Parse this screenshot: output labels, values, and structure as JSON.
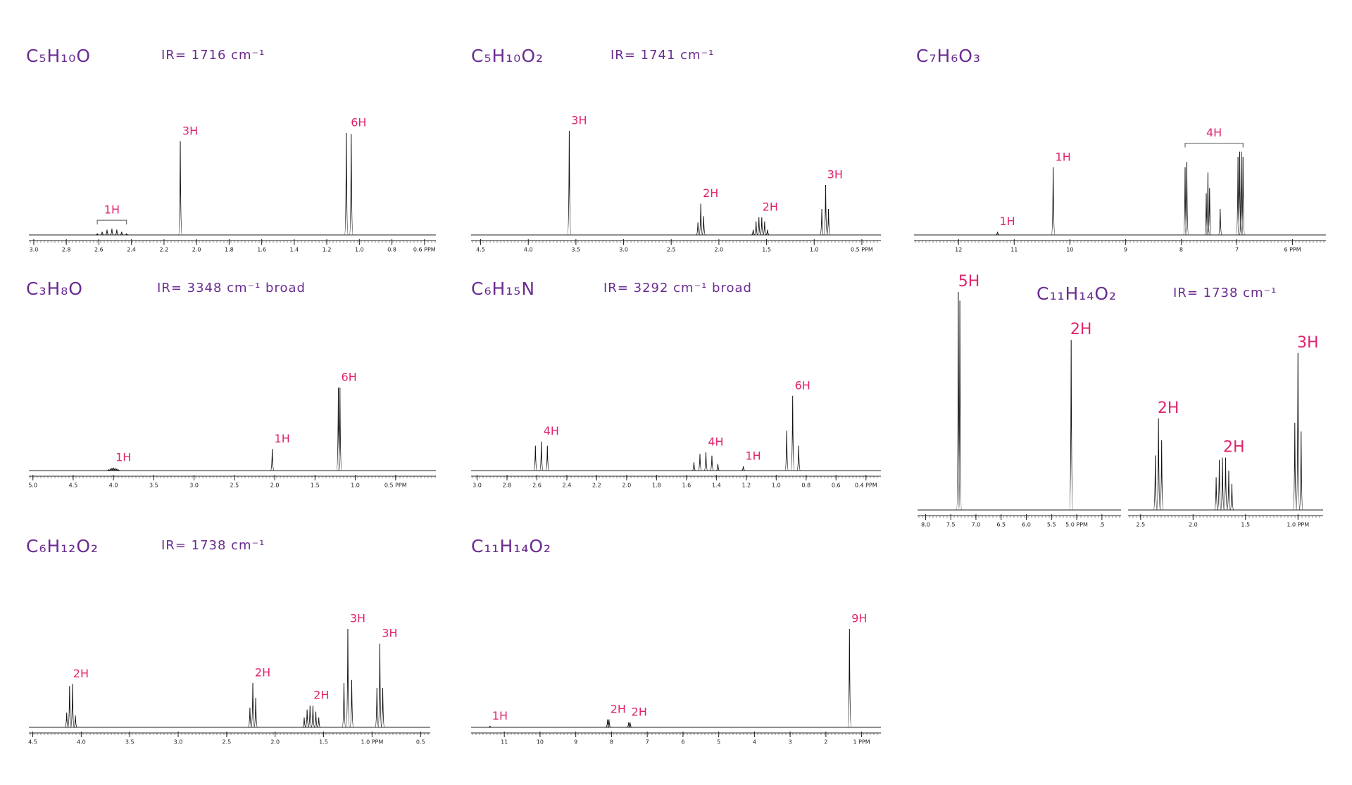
{
  "chart_data": [
    {
      "type": "nmr",
      "title": "C₅H₁₀O",
      "subtitle": "IR= 1716 cm⁻¹",
      "panels": [
        {
          "xlim": [
            3.03,
            0.53
          ],
          "ylim": [
            0,
            100
          ],
          "xticks": [
            {
              "value": 3,
              "label": "3.0"
            },
            2.8,
            2.6,
            2.4,
            2.2,
            {
              "value": 2,
              "label": "2.0"
            },
            1.8,
            1.6,
            1.4,
            1.2,
            {
              "value": 1,
              "label": "1.0"
            },
            0.8,
            {
              "value": 0.6,
              "label": "0.6 PPM"
            }
          ],
          "peaks": [
            {
              "label": "1H",
              "x": [
                2.61,
                2.58,
                2.55,
                2.52,
                2.49,
                2.46,
                2.43
              ],
              "values": [
                1,
                3,
                5,
                6,
                5,
                3,
                1
              ]
            },
            {
              "label": "3H",
              "x": [
                2.1
              ],
              "values": [
                90
              ]
            },
            {
              "label": "6H",
              "x": [
                1.08,
                1.05
              ],
              "values": [
                98,
                97
              ]
            }
          ]
        }
      ]
    },
    {
      "type": "nmr",
      "title": "C₅H₁₀O₂",
      "subtitle": "IR= 1741 cm⁻¹",
      "panels": [
        {
          "xlim": [
            4.6,
            0.3
          ],
          "ylim": [
            0,
            100
          ],
          "xticks": [
            4.5,
            {
              "value": 4,
              "label": "4.0"
            },
            3.5,
            {
              "value": 3,
              "label": "3.0"
            },
            2.5,
            {
              "value": 2,
              "label": "2.0"
            },
            1.5,
            {
              "value": 1,
              "label": "1.0"
            },
            {
              "value": 0.5,
              "label": "0.5 PPM"
            }
          ],
          "peaks": [
            {
              "label": "3H",
              "x": [
                3.57
              ],
              "values": [
                100
              ]
            },
            {
              "label": "2H",
              "x": [
                2.22,
                2.19,
                2.16
              ],
              "values": [
                12,
                30,
                18
              ]
            },
            {
              "label": "2H",
              "x": [
                1.64,
                1.61,
                1.58,
                1.55,
                1.52,
                1.49
              ],
              "values": [
                5,
                13,
                17,
                17,
                13,
                5
              ]
            },
            {
              "label": "3H",
              "x": [
                0.92,
                0.88,
                0.85
              ],
              "values": [
                25,
                48,
                25
              ]
            }
          ]
        }
      ]
    },
    {
      "type": "nmr",
      "title": "C₇H₆O₃",
      "panels": [
        {
          "xlim": [
            12.8,
            5.4
          ],
          "ylim": [
            0,
            100
          ],
          "xticks": [
            12,
            11,
            10,
            9,
            8,
            7,
            {
              "value": 6,
              "label": "6 PPM"
            }
          ],
          "peaks": [
            {
              "label": "1H",
              "x": [
                11.3
              ],
              "values": [
                3
              ]
            },
            {
              "label": "1H",
              "x": [
                10.3
              ],
              "values": [
                65
              ]
            },
            {
              "label": "4H",
              "x": [
                7.93,
                7.9,
                7.55,
                7.52,
                7.49,
                7.3,
                6.98,
                6.95,
                6.92,
                6.89
              ],
              "values": [
                65,
                70,
                40,
                60,
                45,
                25,
                75,
                80,
                80,
                75
              ]
            }
          ]
        }
      ]
    },
    {
      "type": "nmr",
      "title": "C₃H₈O",
      "subtitle": "IR= 3348 cm⁻¹  broad",
      "panels": [
        {
          "xlim": [
            5.05,
            0
          ],
          "ylim": [
            0,
            100
          ],
          "xticks": [
            {
              "value": 5,
              "label": "5.0"
            },
            4.5,
            {
              "value": 4,
              "label": "4.0"
            },
            3.5,
            {
              "value": 3,
              "label": "3.0"
            },
            2.5,
            {
              "value": 2,
              "label": "2.0"
            },
            1.5,
            {
              "value": 1,
              "label": "1.0"
            },
            {
              "value": 0.5,
              "label": "0.5 PPM"
            }
          ],
          "peaks": [
            {
              "label": "1H",
              "x": [
                4.06,
                4.04,
                4.02,
                4.0,
                3.98,
                3.96,
                3.94
              ],
              "values": [
                1,
                2,
                3,
                3.5,
                3,
                2,
                1
              ]
            },
            {
              "label": "1H",
              "x": [
                2.03
              ],
              "values": [
                26
              ]
            },
            {
              "label": "6H",
              "x": [
                1.21,
                1.19
              ],
              "values": [
                100,
                100
              ]
            }
          ]
        }
      ]
    },
    {
      "type": "nmr",
      "title": "C₆H₁₅N",
      "subtitle": "IR= 3292 cm⁻¹  broad",
      "panels": [
        {
          "xlim": [
            3.04,
            0.3
          ],
          "ylim": [
            0,
            100
          ],
          "xticks": [
            {
              "value": 3,
              "label": "3.0"
            },
            2.8,
            2.6,
            2.4,
            2.2,
            {
              "value": 2,
              "label": "2.0"
            },
            1.8,
            1.6,
            1.4,
            1.2,
            {
              "value": 1,
              "label": "1.0"
            },
            0.8,
            0.6,
            {
              "value": 0.4,
              "label": "0.4 PPM"
            }
          ],
          "peaks": [
            {
              "label": "4H",
              "x": [
                2.61,
                2.57,
                2.53
              ],
              "values": [
                30,
                35,
                30
              ]
            },
            {
              "label": "4H",
              "x": [
                1.55,
                1.51,
                1.47,
                1.43,
                1.39
              ],
              "values": [
                10,
                20,
                22,
                18,
                8
              ]
            },
            {
              "label": "1H",
              "x": [
                1.22
              ],
              "values": [
                5
              ]
            },
            {
              "label": "6H",
              "x": [
                0.93,
                0.89,
                0.85
              ],
              "values": [
                48,
                90,
                30
              ]
            }
          ]
        }
      ]
    },
    {
      "type": "nmr",
      "title": "C₁₁H₁₄O₂",
      "subtitle": "IR= 1738 cm⁻¹",
      "panels": [
        {
          "xlim": [
            8.16,
            4.12
          ],
          "ylim": [
            0,
            100
          ],
          "xticks": [
            {
              "value": 8,
              "label": "8.0"
            },
            7.5,
            {
              "value": 7,
              "label": "7.0"
            },
            6.5,
            {
              "value": 6,
              "label": "6.0"
            },
            5.5,
            {
              "value": 5,
              "label": "5.0 PPM"
            },
            {
              "value": 4.5,
              "label": ".5"
            }
          ],
          "peaks": [
            {
              "label": "5H",
              "x": [
                7.35,
                7.32
              ],
              "values": [
                100,
                96
              ]
            },
            {
              "label": "2H",
              "x": [
                5.11
              ],
              "values": [
                78
              ]
            }
          ]
        },
        {
          "xlim": [
            2.62,
            0.76
          ],
          "ylim": [
            0,
            100
          ],
          "xticks": [
            2.5,
            {
              "value": 2,
              "label": "2.0"
            },
            1.5,
            {
              "value": 1,
              "label": "1.0 PPM"
            }
          ],
          "peaks": [
            {
              "label": "2H",
              "x": [
                2.36,
                2.33,
                2.3
              ],
              "values": [
                25,
                42,
                32
              ]
            },
            {
              "label": "2H",
              "x": [
                1.78,
                1.75,
                1.72,
                1.69,
                1.66,
                1.63
              ],
              "values": [
                15,
                23,
                24,
                24,
                18,
                12
              ]
            },
            {
              "label": "3H",
              "x": [
                1.03,
                1.0,
                0.97
              ],
              "values": [
                40,
                72,
                36
              ]
            }
          ]
        }
      ]
    },
    {
      "type": "nmr",
      "title": "C₆H₁₂O₂",
      "subtitle": "IR= 1738 cm⁻¹",
      "panels": [
        {
          "xlim": [
            4.54,
            0.4
          ],
          "ylim": [
            0,
            100
          ],
          "xticks": [
            4.5,
            {
              "value": 4,
              "label": "4.0"
            },
            3.5,
            {
              "value": 3,
              "label": "3.0"
            },
            2.5,
            {
              "value": 2,
              "label": "2.0"
            },
            1.5,
            {
              "value": 1,
              "label": "1.0 PPM"
            },
            0.5
          ],
          "peaks": [
            {
              "label": "2H",
              "x": [
                4.15,
                4.12,
                4.09,
                4.06
              ],
              "values": [
                15,
                42,
                44,
                12
              ]
            },
            {
              "label": "2H",
              "x": [
                2.26,
                2.23,
                2.2
              ],
              "values": [
                20,
                45,
                30
              ]
            },
            {
              "label": "2H",
              "x": [
                1.7,
                1.67,
                1.64,
                1.61,
                1.58,
                1.55
              ],
              "values": [
                10,
                18,
                22,
                22,
                16,
                10
              ]
            },
            {
              "label": "3H",
              "x": [
                1.29,
                1.25,
                1.21
              ],
              "values": [
                45,
                100,
                48
              ]
            },
            {
              "label": "3H",
              "x": [
                0.95,
                0.92,
                0.89
              ],
              "values": [
                40,
                85,
                40
              ]
            }
          ]
        }
      ]
    },
    {
      "type": "nmr",
      "title": "C₁₁H₁₄O₂",
      "panels": [
        {
          "xlim": [
            11.93,
            0.46
          ],
          "ylim": [
            0,
            100
          ],
          "xticks": [
            11,
            10,
            9,
            8,
            7,
            6,
            5,
            4,
            3,
            2,
            {
              "value": 1,
              "label": "1 PPM"
            }
          ],
          "peaks": [
            {
              "label": "1H",
              "x": [
                11.4
              ],
              "values": [
                1
              ]
            },
            {
              "label": "2H",
              "x": [
                8.11,
                8.07
              ],
              "values": [
                8,
                8
              ]
            },
            {
              "label": "2H",
              "x": [
                7.52,
                7.48
              ],
              "values": [
                5,
                5
              ]
            },
            {
              "label": "9H",
              "x": [
                1.34
              ],
              "values": [
                100
              ]
            }
          ]
        }
      ]
    }
  ]
}
